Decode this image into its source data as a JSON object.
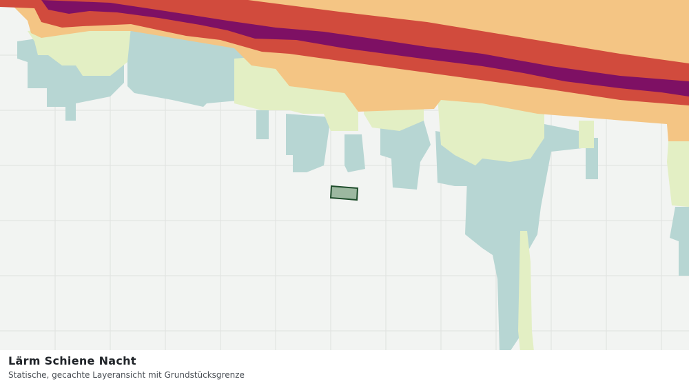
{
  "panel": {
    "title": "Lärm Schiene Nacht",
    "subtitle": "Statische, gecachte Layeransicht mit Grundstücksgrenze"
  }
}
